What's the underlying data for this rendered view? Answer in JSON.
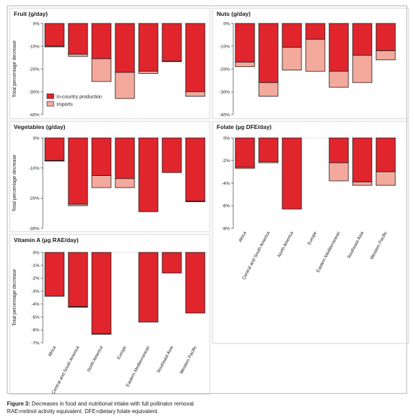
{
  "caption": {
    "label": "Figure 3:",
    "title": "Decreases in food and nutritional intake with full pollinator removal",
    "note": "RAE=retinol activity equivalent. DFE=dietary folate equivalent."
  },
  "colors": {
    "in_country": "#e0252d",
    "imports": "#f3a99c",
    "stroke": "#1a1a1a"
  },
  "chart_data": [
    {
      "type": "bar",
      "stacked": true,
      "title": "Fruit (g/day)",
      "ylabel": "Total percentage decrease",
      "ylim": [
        -40,
        0
      ],
      "yticks": [
        "0%",
        "-10%",
        "-20%",
        "-30%",
        "-40%"
      ],
      "categories": [
        "Africa",
        "Central and South America",
        "North America",
        "Europe",
        "Eastern Mediterranean",
        "Southeast Asia",
        "Western Pacific"
      ],
      "series": [
        {
          "name": "In-country production",
          "values": [
            -10,
            -13.5,
            -15.5,
            -21.5,
            -21,
            -16.5,
            -30
          ]
        },
        {
          "name": "Imports",
          "values": [
            -0.3,
            -1,
            -10,
            -11.5,
            -1,
            -0.3,
            -2
          ]
        }
      ],
      "legend": "bottom-left"
    },
    {
      "type": "bar",
      "stacked": true,
      "title": "Nuts (g/day)",
      "ylabel": "",
      "ylim": [
        -40,
        0
      ],
      "yticks": [
        "0%",
        "-10%",
        "-20%",
        "-30%",
        "-40%"
      ],
      "categories": [
        "Africa",
        "Central and South America",
        "North America",
        "Europe",
        "Eastern Mediterranean",
        "Southeast Asia",
        "Western Pacific"
      ],
      "series": [
        {
          "name": "In-country production",
          "values": [
            -17,
            -26,
            -10.5,
            -7,
            -21,
            -14,
            -12
          ]
        },
        {
          "name": "Imports",
          "values": [
            -2,
            -6,
            -10,
            -14,
            -7,
            -12,
            -4
          ]
        }
      ]
    },
    {
      "type": "bar",
      "stacked": true,
      "title": "Vegetables (g/day)",
      "ylabel": "Total percentage decrease",
      "ylim": [
        -30,
        0
      ],
      "yticks": [
        "0%",
        "-10%",
        "-20%",
        "-30%"
      ],
      "categories": [
        "Africa",
        "Central and South America",
        "North America",
        "Europe",
        "Eastern Mediterranean",
        "Southeast Asia",
        "Western Pacific"
      ],
      "series": [
        {
          "name": "In-country production",
          "values": [
            -7.5,
            -22,
            -12.5,
            -13.5,
            -24.5,
            -11.5,
            -21
          ]
        },
        {
          "name": "Imports",
          "values": [
            -0.2,
            -0.5,
            -4,
            -3,
            0,
            0,
            -0.2
          ]
        }
      ]
    },
    {
      "type": "bar",
      "stacked": true,
      "title": "Folate (µg DFE/day)",
      "ylabel": "",
      "ylim": [
        -8,
        0
      ],
      "yticks": [
        "0%",
        "-2%",
        "-4%",
        "-6%",
        "-8%"
      ],
      "categories": [
        "Africa",
        "Central and South America",
        "North America",
        "Europe",
        "Eastern Mediterranean",
        "Southeast Asia",
        "Western Pacific"
      ],
      "series": [
        {
          "name": "In-country production",
          "values": [
            -2.6,
            -2.1,
            -6.3,
            0,
            -2.2,
            -3.9,
            -3.0
          ]
        },
        {
          "name": "Imports",
          "values": [
            -0.1,
            -0.1,
            0,
            0,
            -1.6,
            -0.3,
            -1.2
          ]
        }
      ],
      "xlabels": true
    },
    {
      "type": "bar",
      "stacked": true,
      "title": "Vitamin A (µg RAE/day)",
      "ylabel": "Total percentage decrease",
      "ylim": [
        -7,
        0
      ],
      "yticks": [
        "0%",
        "-1%",
        "-2%",
        "-3%",
        "-4%",
        "-5%",
        "-6%",
        "-7%"
      ],
      "categories": [
        "Africa",
        "Central and South America",
        "North America",
        "Europe",
        "Eastern Mediterranean",
        "Southeast Asia",
        "Western Pacific"
      ],
      "series": [
        {
          "name": "In-country production",
          "values": [
            -3.4,
            -4.2,
            -6.3,
            0,
            -5.4,
            -1.6,
            -4.7
          ]
        },
        {
          "name": "Imports",
          "values": [
            0,
            -0.05,
            -0.05,
            0,
            0,
            0,
            0
          ]
        }
      ],
      "xlabels": true
    }
  ]
}
